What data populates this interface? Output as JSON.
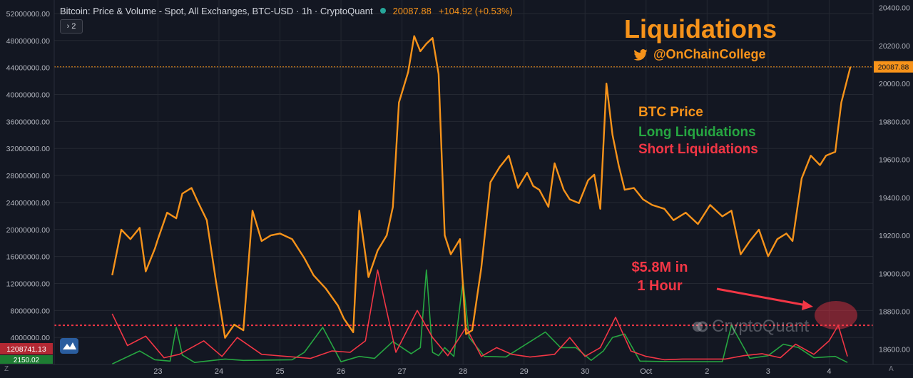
{
  "header": {
    "title": "Bitcoin: Price & Volume - Spot, All Exchanges, BTC-USD · 1h · CryptoQuant",
    "last_price": "20087.88",
    "change": "+104.92 (+0.53%)",
    "collapse_label": "› 2"
  },
  "overlay": {
    "title": "Liquidations",
    "handle": "@OnChainCollege",
    "legend": {
      "price": "BTC Price",
      "long": "Long Liquidations",
      "short": "Short Liquidations"
    },
    "annotation_line1": "$5.8M in",
    "annotation_line2": "1 Hour",
    "watermark": "CryptoQuant"
  },
  "axis_badges": {
    "left_value": "1208741.13",
    "left_value_2": "2150.02",
    "right_price": "20087.88"
  },
  "corner_labels": {
    "left": "Z",
    "right": "A"
  },
  "colors": {
    "background": "#131722",
    "price": "#f7931a",
    "long": "#26a641",
    "short": "#f23645",
    "grid": "#242832",
    "axis_text": "#b2b5be"
  },
  "chart_data": {
    "type": "line",
    "x_tick_labels": [
      "23",
      "24",
      "25",
      "26",
      "27",
      "28",
      "29",
      "30",
      "Oct",
      "2",
      "3",
      "4"
    ],
    "left_axis": {
      "ylim": [
        2150,
        54000000
      ],
      "ticks": [
        4000000,
        8000000,
        12000000,
        16000000,
        20000000,
        24000000,
        28000000,
        32000000,
        36000000,
        40000000,
        44000000,
        48000000,
        52000000
      ]
    },
    "right_axis": {
      "ylim": [
        18520,
        20440
      ],
      "ticks": [
        18600,
        18800,
        19000,
        19200,
        19400,
        19600,
        19800,
        20000,
        20200,
        20400
      ]
    },
    "reference_lines": [
      {
        "axis": "left",
        "value": 5800000,
        "style": "dotted"
      },
      {
        "axis": "right",
        "value": 20087.88,
        "style": "dotted"
      }
    ],
    "series": [
      {
        "name": "BTC Price",
        "axis": "right",
        "x": [
          22.25,
          22.4,
          22.55,
          22.7,
          22.8,
          22.95,
          23.0,
          23.15,
          23.3,
          23.4,
          23.55,
          23.65,
          23.8,
          23.95,
          24.1,
          24.25,
          24.4,
          24.55,
          24.7,
          24.85,
          25.0,
          25.2,
          25.4,
          25.55,
          25.75,
          25.95,
          26.05,
          26.2,
          26.3,
          26.45,
          26.6,
          26.75,
          26.85,
          26.95,
          27.1,
          27.2,
          27.3,
          27.4,
          27.5,
          27.6,
          27.7,
          27.8,
          27.95,
          28.05,
          28.15,
          28.3,
          28.45,
          28.6,
          28.75,
          28.9,
          29.05,
          29.15,
          29.25,
          29.4,
          29.5,
          29.65,
          29.75,
          29.9,
          30.05,
          30.15,
          30.25,
          30.35,
          30.45,
          30.55,
          30.65,
          30.8,
          30.95,
          31.1,
          31.3,
          31.45,
          31.65,
          31.85,
          32.05,
          32.25,
          32.4,
          32.55,
          32.7,
          32.85,
          33.0,
          33.15,
          33.3,
          33.4,
          33.55,
          33.7,
          33.85,
          33.95,
          34.1,
          34.2,
          34.35
        ],
        "values": [
          18990,
          19230,
          19180,
          19240,
          19010,
          19130,
          19180,
          19320,
          19290,
          19420,
          19450,
          19380,
          19280,
          18960,
          18660,
          18730,
          18700,
          19330,
          19170,
          19200,
          19210,
          19180,
          19080,
          18990,
          18920,
          18830,
          18760,
          18690,
          19330,
          18980,
          19120,
          19200,
          19350,
          19900,
          20060,
          20250,
          20170,
          20210,
          20240,
          20050,
          19200,
          19100,
          19180,
          18680,
          18700,
          19030,
          19480,
          19560,
          19620,
          19450,
          19530,
          19460,
          19440,
          19350,
          19580,
          19440,
          19390,
          19370,
          19490,
          19520,
          19340,
          20000,
          19730,
          19570,
          19440,
          19450,
          19390,
          19360,
          19340,
          19280,
          19320,
          19260,
          19360,
          19300,
          19330,
          19100,
          19170,
          19230,
          19090,
          19180,
          19210,
          19170,
          19500,
          19620,
          19570,
          19620,
          19640,
          19900,
          20087.88
        ]
      },
      {
        "name": "Long Liquidations",
        "axis": "left",
        "x": [
          22.25,
          22.7,
          22.95,
          23.2,
          23.3,
          23.4,
          23.6,
          24.1,
          24.4,
          25.2,
          25.4,
          25.7,
          26.0,
          26.3,
          26.55,
          26.85,
          27.15,
          27.3,
          27.4,
          27.5,
          27.6,
          27.7,
          27.85,
          28.0,
          28.1,
          28.35,
          28.7,
          29.35,
          29.6,
          29.85,
          30.1,
          30.3,
          30.45,
          30.65,
          30.9,
          31.5,
          32.25,
          32.4,
          32.7,
          33.0,
          33.25,
          33.5,
          33.75,
          34.1,
          34.3
        ],
        "values": [
          80000,
          2000000,
          700000,
          500000,
          5500000,
          1400000,
          300000,
          800000,
          600000,
          700000,
          1800000,
          5500000,
          400000,
          1200000,
          900000,
          3400000,
          1600000,
          2500000,
          14000000,
          1800000,
          1300000,
          2500000,
          1200000,
          12500000,
          4000000,
          1200000,
          1100000,
          4800000,
          2500000,
          2500000,
          600000,
          2000000,
          4000000,
          4500000,
          500000,
          400000,
          400000,
          5800000,
          900000,
          1300000,
          3000000,
          2500000,
          1000000,
          1200000,
          300000
        ]
      },
      {
        "name": "Short Liquidations",
        "axis": "left",
        "x": [
          22.25,
          22.5,
          22.8,
          23.1,
          23.35,
          23.75,
          24.05,
          24.3,
          24.7,
          25.1,
          25.5,
          25.85,
          26.15,
          26.4,
          26.6,
          26.9,
          27.25,
          27.5,
          27.75,
          28.05,
          28.3,
          28.55,
          28.8,
          29.1,
          29.5,
          29.75,
          30.0,
          30.25,
          30.5,
          30.75,
          31.0,
          31.3,
          31.6,
          32.0,
          32.3,
          32.6,
          32.9,
          33.2,
          33.45,
          33.75,
          34.0,
          34.15,
          34.3
        ],
        "values": [
          7500000,
          2800000,
          4200000,
          1000000,
          1500000,
          3500000,
          1200000,
          4000000,
          1500000,
          1200000,
          900000,
          2000000,
          1800000,
          3500000,
          14000000,
          1800000,
          8000000,
          4000000,
          1300000,
          5500000,
          1200000,
          2500000,
          1500000,
          1100000,
          1500000,
          4000000,
          1200000,
          2500000,
          7000000,
          2000000,
          1200000,
          700000,
          800000,
          800000,
          800000,
          1300000,
          1600000,
          1000000,
          3000000,
          1500000,
          3500000,
          5800000,
          1200000
        ]
      }
    ]
  }
}
